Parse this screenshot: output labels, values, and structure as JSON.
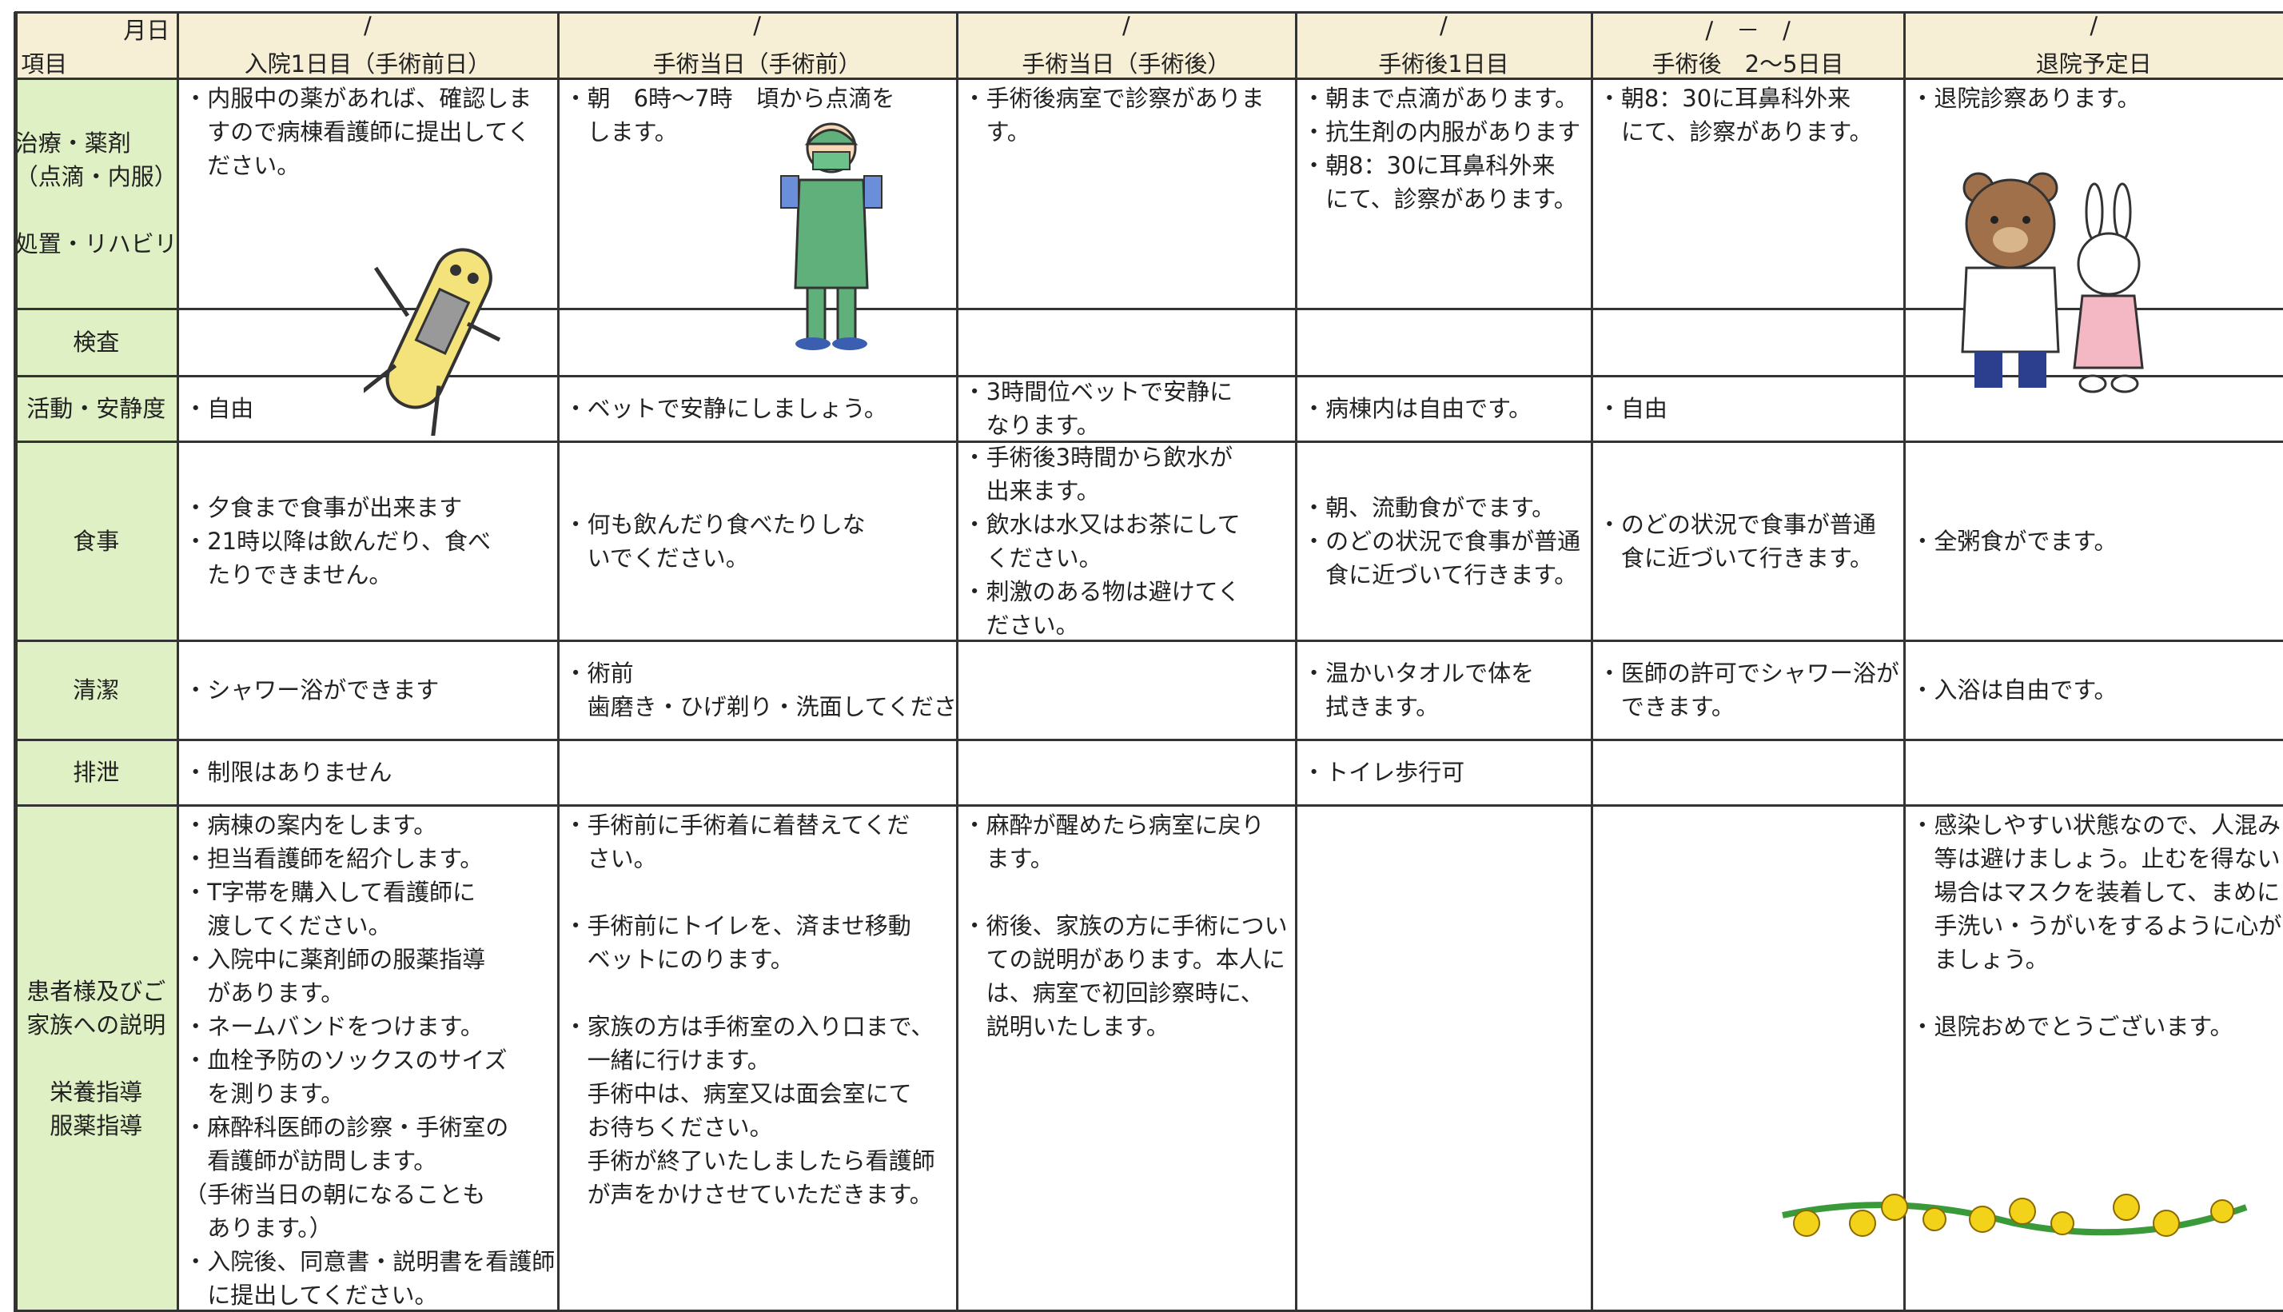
{
  "header": {
    "date_label": "月日",
    "item_label": "項目",
    "columns": [
      {
        "date": "/",
        "title": "入院1日目（手術前日）"
      },
      {
        "date": "/",
        "title": "手術当日（手術前）"
      },
      {
        "date": "/",
        "title": "手術当日（手術後）"
      },
      {
        "date": "/",
        "title": "手術後1日目"
      },
      {
        "date": "/　－　/",
        "title": "手術後　2～5日目"
      },
      {
        "date": "/",
        "title": "退院予定日"
      }
    ]
  },
  "rows": [
    {
      "label": [
        [
          "治療・薬剤",
          "（点滴・内服）"
        ],
        [
          "処置・リハビリ"
        ]
      ],
      "cells": [
        [
          [
            "・内服中の薬があれば、確認しま",
            "すので病棟看護師に提出してく",
            "ださい。"
          ]
        ],
        [
          [
            "・朝　6時～7時　頃から点滴を",
            "します。"
          ]
        ],
        [
          [
            "・手術後病室で診察がありま",
            "す。"
          ]
        ],
        [
          [
            "・朝まで点滴があります。",
            "・抗生剤の内服があります",
            "・朝8：30に耳鼻科外来",
            "にて、診察があります。"
          ]
        ],
        [
          [
            "・朝8：30に耳鼻科外来",
            "にて、診察があります。"
          ]
        ],
        [
          [
            "・退院診察あります。"
          ]
        ]
      ]
    },
    {
      "label": [
        [
          "検査"
        ]
      ],
      "cells": [
        [],
        [],
        [],
        [],
        [],
        []
      ]
    },
    {
      "label": [
        [
          "活動・安静度"
        ]
      ],
      "cells": [
        [
          [
            "・自由"
          ]
        ],
        [
          [
            "・ベットで安静にしましょう。"
          ]
        ],
        [
          [
            "・3時間位ベットで安静に",
            "なります。"
          ]
        ],
        [
          [
            "・病棟内は自由です。"
          ]
        ],
        [
          [
            "・自由"
          ]
        ],
        []
      ]
    },
    {
      "label": [
        [
          "食事"
        ]
      ],
      "cells": [
        [
          [
            "・夕食まで食事が出来ます",
            "・21時以降は飲んだり、食べ",
            "たりできません。"
          ]
        ],
        [
          [
            "・何も飲んだり食べたりしな",
            "いでください。"
          ]
        ],
        [
          [
            "・手術後3時間から飲水が",
            "出来ます。",
            "・飲水は水又はお茶にして",
            "ください。",
            "・刺激のある物は避けてく",
            "ださい。"
          ]
        ],
        [
          [
            "・朝、流動食がでます。",
            "・のどの状況で食事が普通",
            "食に近づいて行きます。"
          ]
        ],
        [
          [
            "・のどの状況で食事が普通",
            "食に近づいて行きます。"
          ]
        ],
        [
          [
            "・全粥食がでます。"
          ]
        ]
      ]
    },
    {
      "label": [
        [
          "清潔"
        ]
      ],
      "cells": [
        [
          [
            "・シャワー浴ができます"
          ]
        ],
        [
          [
            "・術前",
            "歯磨き・ひげ剃り・洗面してください"
          ]
        ],
        [],
        [
          [
            "・温かいタオルで体を",
            "拭きます。"
          ]
        ],
        [
          [
            "・医師の許可でシャワー浴が",
            "できます。"
          ]
        ],
        [
          [
            "・入浴は自由です。"
          ]
        ]
      ]
    },
    {
      "label": [
        [
          "排泄"
        ]
      ],
      "cells": [
        [
          [
            "・制限はありません"
          ]
        ],
        [],
        [],
        [
          [
            "・トイレ歩行可"
          ]
        ],
        [],
        []
      ]
    },
    {
      "label": [
        [
          "患者様及びご",
          "家族への説明"
        ],
        [
          "栄養指導",
          "服薬指導"
        ]
      ],
      "cells": [
        [
          [
            "・病棟の案内をします。",
            "・担当看護師を紹介します。",
            "・T字帯を購入して看護師に",
            "渡してください。",
            "・入院中に薬剤師の服薬指導",
            "があります。",
            "・ネームバンドをつけます。",
            "・血栓予防のソックスのサイズ",
            "を測ります。",
            "・麻酔科医師の診察・手術室の",
            "看護師が訪問します。",
            "（手術当日の朝になることも",
            "あります。）",
            "・入院後、同意書・説明書を看護師",
            "に提出してください。"
          ]
        ],
        [
          [
            "・手術前に手術着に着替えてくだ",
            "さい。"
          ],
          [
            "・手術前にトイレを、済ませ移動",
            "ベットにのります。"
          ],
          [
            "・家族の方は手術室の入り口まで、",
            "一緒に行けます。",
            "手術中は、病室又は面会室にて",
            "お待ちください。",
            "手術が終了いたしましたら看護師",
            "が声をかけさせていただきます。"
          ]
        ],
        [
          [
            "・麻酔が醒めたら病室に戻り",
            "ます。"
          ],
          [
            "・術後、家族の方に手術につい",
            "ての説明があります。本人に",
            "は、病室で初回診察時に、",
            "説明いたします。"
          ]
        ],
        [],
        [],
        [
          [
            "・感染しやすい状態なので、人混み",
            "等は避けましょう。止むを得ない",
            "場合はマスクを装着して、まめに",
            "手洗い・うがいをするように心がけ",
            "ましょう。"
          ],
          [
            "・退院おめでとうございます。"
          ]
        ]
      ]
    }
  ]
}
